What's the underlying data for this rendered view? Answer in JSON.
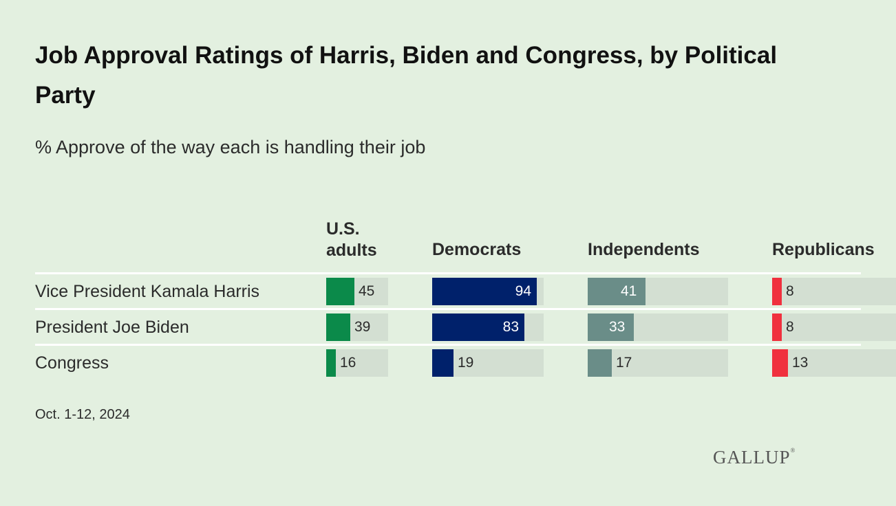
{
  "title": "Job Approval Ratings of Harris, Biden and Congress, by Political Party",
  "subtitle": "% Approve of the way each is handling their job",
  "footer": {
    "date": "Oct. 1-12, 2024",
    "logo": "GALLUP"
  },
  "chart_data": {
    "type": "bar",
    "orientation": "horizontal",
    "small_multiples": true,
    "categories": [
      "Vice President Kamala Harris",
      "President Joe Biden",
      "Congress"
    ],
    "series": [
      {
        "name": "U.S. adults",
        "name_lines": [
          "U.S.",
          "adults"
        ],
        "color": "#0b8a4a",
        "values": [
          45,
          39,
          16
        ]
      },
      {
        "name": "Democrats",
        "name_lines": [
          "Democrats"
        ],
        "color": "#00216b",
        "values": [
          94,
          83,
          19
        ]
      },
      {
        "name": "Independents",
        "name_lines": [
          "Independents"
        ],
        "color": "#6a8d88",
        "values": [
          41,
          33,
          17
        ]
      },
      {
        "name": "Republicans",
        "name_lines": [
          "Republicans"
        ],
        "color": "#f0303e",
        "values": [
          8,
          8,
          13
        ]
      }
    ],
    "xlim": [
      0,
      100
    ],
    "track_color": "#d3dfd2",
    "grid": false,
    "legend": "column headers"
  }
}
